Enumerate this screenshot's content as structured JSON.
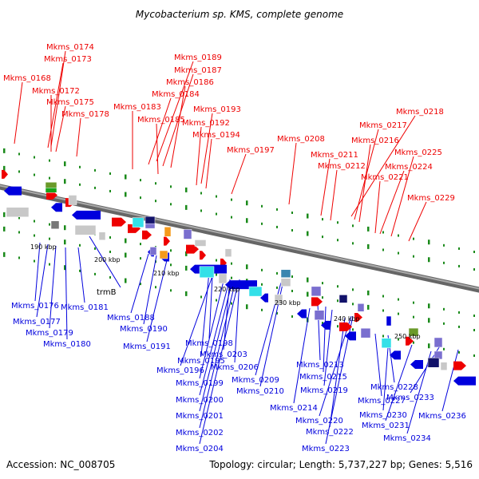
{
  "title": "Mycobacterium sp. KMS, complete genome",
  "footer": {
    "accession": "Accession: NC_008705",
    "topology": "Topology: circular; Length: 5,737,227 bp; Genes: 5,516"
  },
  "colors": {
    "forward": "#ee0000",
    "reverse": "#0000dd",
    "backbone": "#888888",
    "tick": "#1a8a1a",
    "cyan": "#33e0e8",
    "orange": "#f59a1c",
    "purple": "#7a6fcf",
    "gray": "#c8c8c8",
    "navy": "#12126a",
    "olive": "#6a9a2a",
    "teal": "#3a86b0"
  },
  "scale_labels": [
    "190 kbp",
    "200 kbp",
    "210 kbp",
    "220 kbp",
    "230 kbp",
    "240 kbp",
    "250 kbp"
  ],
  "top_labels": [
    "Mkms_0174",
    "Mkms_0173",
    "Mkms_0168",
    "Mkms_0172",
    "Mkms_0175",
    "Mkms_0178",
    "Mkms_0189",
    "Mkms_0187",
    "Mkms_0186",
    "Mkms_0184",
    "Mkms_0183",
    "Mkms_0185",
    "Mkms_0193",
    "Mkms_0192",
    "Mkms_0194",
    "Mkms_0197",
    "Mkms_0208",
    "Mkms_0218",
    "Mkms_0217",
    "Mkms_0216",
    "Mkms_0211",
    "Mkms_0212",
    "Mkms_0225",
    "Mkms_0224",
    "Mkms_0221",
    "Mkms_0229"
  ],
  "bottom_labels": [
    "trmB",
    "Mkms_0176",
    "Mkms_0181",
    "Mkms_0177",
    "Mkms_0179",
    "Mkms_0180",
    "Mkms_0188",
    "Mkms_0190",
    "Mkms_0191",
    "Mkms_0198",
    "Mkms_0195",
    "Mkms_0203",
    "Mkms_0196",
    "Mkms_0206",
    "Mkms_0199",
    "Mkms_0200",
    "Mkms_0201",
    "Mkms_0202",
    "Mkms_0204",
    "Mkms_0209",
    "Mkms_0210",
    "Mkms_0213",
    "Mkms_0215",
    "Mkms_0219",
    "Mkms_0214",
    "Mkms_0220",
    "Mkms_0222",
    "Mkms_0223",
    "Mkms_0228",
    "Mkms_0227",
    "Mkms_0233",
    "Mkms_0230",
    "Mkms_0231",
    "Mkms_0234",
    "Mkms_0236"
  ]
}
